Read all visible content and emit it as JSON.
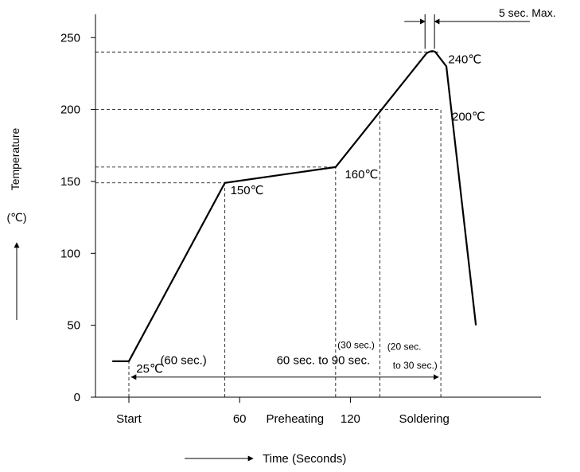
{
  "chart_data": {
    "type": "line",
    "title": "",
    "xlabel": "Time (Seconds)",
    "ylabel": "Temperature",
    "ylabel_unit": "(℃)",
    "ylim": [
      0,
      260
    ],
    "yticks": [
      0,
      50,
      100,
      150,
      200,
      250
    ],
    "xticks": [
      {
        "x": 0,
        "label": "Start"
      },
      {
        "x": 60,
        "label": "60"
      },
      {
        "x": 120,
        "label": "120"
      }
    ],
    "zone_labels": [
      {
        "x": 90,
        "label": "Preheating"
      },
      {
        "x": 160,
        "label": "Soldering"
      }
    ],
    "x": [
      -9,
      0,
      52,
      112,
      162,
      166,
      172,
      188
    ],
    "y": [
      25,
      25,
      149,
      160,
      240,
      240,
      230,
      50
    ],
    "reference_lines": [
      {
        "axis": "y",
        "value": 240,
        "x_to": 169
      },
      {
        "axis": "y",
        "value": 200,
        "x_to": 169
      },
      {
        "axis": "y",
        "value": 160,
        "x_to": 112
      },
      {
        "axis": "y",
        "value": 149,
        "x_to": 52
      },
      {
        "axis": "x",
        "value": 0,
        "y_to": 25
      },
      {
        "axis": "x",
        "value": 52,
        "y_to": 149
      },
      {
        "axis": "x",
        "value": 112,
        "y_to": 160
      },
      {
        "axis": "x",
        "value": 136,
        "y_to": 200
      },
      {
        "axis": "x",
        "value": 169,
        "y_to": 200
      }
    ],
    "point_labels": [
      {
        "x": 4,
        "y": 25,
        "text": "25℃"
      },
      {
        "x": 55,
        "y": 149,
        "text": "150℃"
      },
      {
        "x": 117,
        "y": 160,
        "text": "160℃"
      },
      {
        "x": 173,
        "y": 240,
        "text": "240℃"
      },
      {
        "x": 175,
        "y": 200,
        "text": "200℃"
      }
    ],
    "interval_labels": [
      {
        "x": 17,
        "y": 23,
        "text": "(60 sec.)"
      },
      {
        "x": 80,
        "y": 23,
        "text": "60 sec. to 90 sec."
      },
      {
        "x": 113,
        "y": 34,
        "text": "(30 sec.)"
      },
      {
        "x": 140,
        "y": 33,
        "text": "(20 sec."
      },
      {
        "x": 143,
        "y": 20,
        "text": "to 30 sec.)"
      }
    ],
    "span_arrow": {
      "x_from": 0,
      "x_to": 169,
      "y": 14
    },
    "max_marker": {
      "x_from": 160,
      "x_to": 166,
      "text": "5 sec. Max."
    }
  }
}
